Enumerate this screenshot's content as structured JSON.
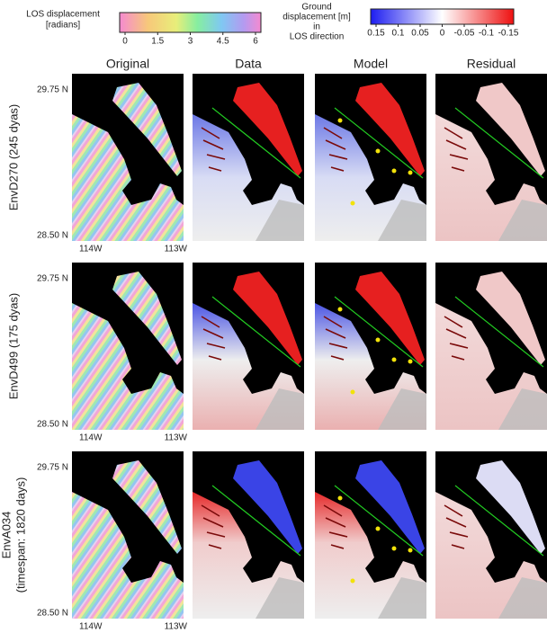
{
  "colorbars": [
    {
      "title_lines": [
        "LOS displacement",
        "[radians]"
      ],
      "lim": [
        0,
        6
      ],
      "ticks": [
        0,
        1.5,
        3,
        4.5,
        6
      ]
    },
    {
      "title_lines": [
        "Ground",
        "displacement [m]",
        "in",
        "LOS direction"
      ],
      "lim": [
        0.15,
        -0.15
      ],
      "ticks": [
        0.15,
        0.1,
        0.05,
        0,
        -0.05,
        -0.1,
        -0.15
      ]
    }
  ],
  "columns": [
    "Original",
    "Data",
    "Model",
    "Residual"
  ],
  "rows": [
    {
      "label_lines": [
        "EnvD270 (245 dyas)"
      ],
      "lat_top": "29.75 N",
      "lat_bottom": "28.50 N",
      "lon_left": "114W",
      "lon_right": "113W"
    },
    {
      "label_lines": [
        "EnvD499 (175 dyas)"
      ],
      "lat_top": "29.75 N",
      "lat_bottom": "28.50 N",
      "lon_left": "114W",
      "lon_right": "113W"
    },
    {
      "label_lines": [
        "EnvA034",
        "(timespan: 1820 days)"
      ],
      "lat_top": "29.75 N",
      "lat_bottom": "28.50 N",
      "lon_left": "114W",
      "lon_right": "113W"
    }
  ]
}
